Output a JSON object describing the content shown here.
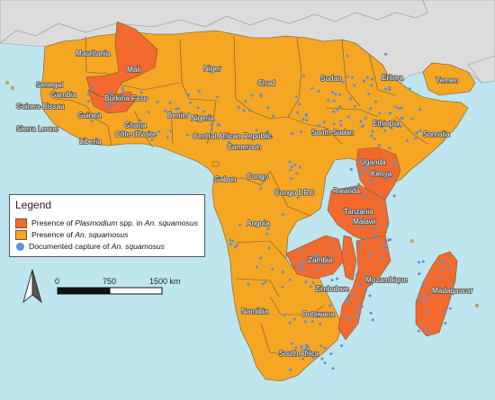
{
  "colors": {
    "ocean": "#bfe6ef",
    "other_land": "#dcdcdc",
    "presence": "#f5a623",
    "plasmodium": "#f26a2e",
    "capture_dot": "#5b8fd6",
    "border": "#6e5a3c"
  },
  "countries": {
    "plasmodium": [
      "Mali",
      "Burkina Faso",
      "Kenya",
      "Tanzania",
      "Zambia",
      "Malawi",
      "Mozambique",
      "Madagascar"
    ],
    "presence_labels": [
      "Mauritania",
      "Senegal",
      "Gambia",
      "Guinea-Bissau",
      "Guinea",
      "Sierra Leone",
      "Liberia",
      "Ghana",
      "Côte d'Ivoire",
      "Benin",
      "Nigeria",
      "Niger",
      "Chad",
      "Sudan",
      "Eritrea",
      "Yemen",
      "Ethiopia",
      "Somalia",
      "South Sudan",
      "Central African Republic",
      "Cameroon",
      "Congo",
      "Gabon",
      "Congo DRC",
      "Uganda",
      "Rwanda",
      "Angola",
      "Zimbabwe",
      "Namibia",
      "Botswana",
      "South Africa"
    ]
  },
  "labels": {
    "Mauritania": "Mauritania",
    "Mali": "Mali",
    "Niger": "Niger",
    "Senegal": "Senegal",
    "Gambia": "Gambia",
    "Burkina Faso": "Burkina Faso",
    "Guinea-Bissau": "Guinea-Bissau",
    "Guinea": "Guinea",
    "Ghana": "Ghana",
    "Benin": "Benin",
    "Nigeria": "Nigeria",
    "Sierra Leone": "Sierra Leone",
    "Côte d'Ivoire": "Côte d'Ivoire",
    "Liberia": "Liberia",
    "Chad": "Chad",
    "Sudan": "Sudan",
    "Eritrea": "Eritrea",
    "Yemen": "Yemen",
    "Ethiopia": "Ethiopia",
    "Somalia": "Somalia",
    "South Sudan": "South Sudan",
    "Central African Republic": "Central African Republic",
    "Cameroon": "Cameroon",
    "Uganda": "Uganda",
    "Kenya": "Kenya",
    "Congo": "Congo",
    "Gabon": "Gabon",
    "Congo DRC": "Congo DRC",
    "Rwanda": "Rwanda",
    "Tanzania": "Tanzania",
    "Angola": "Angola",
    "Malawi": "Malawi",
    "Zambia": "Zambia",
    "Mozambique": "Mozambique",
    "Madagascar": "Madagascar",
    "Zimbabwe": "Zimbabwe",
    "Namibia": "Namibia",
    "Botswana": "Botswana",
    "South Africa": "South Africa"
  },
  "legend": {
    "title": "Legend",
    "items": [
      {
        "type": "square",
        "color_key": "plasmodium",
        "pre": "Presence of ",
        "italic": "Plasmodium",
        "post": " spp. in ",
        "italic2": "An. squamosus"
      },
      {
        "type": "square",
        "color_key": "presence",
        "pre": "Presence of ",
        "italic": "An. squamosus",
        "post": "",
        "italic2": ""
      },
      {
        "type": "dot",
        "color_key": "capture_dot",
        "pre": "Documented capture of ",
        "italic": "An. squamosus",
        "post": "",
        "italic2": ""
      }
    ]
  },
  "scale_bar": {
    "ticks": [
      "0",
      "750",
      "1500 km"
    ],
    "north_arrow": "north-arrow-icon"
  }
}
